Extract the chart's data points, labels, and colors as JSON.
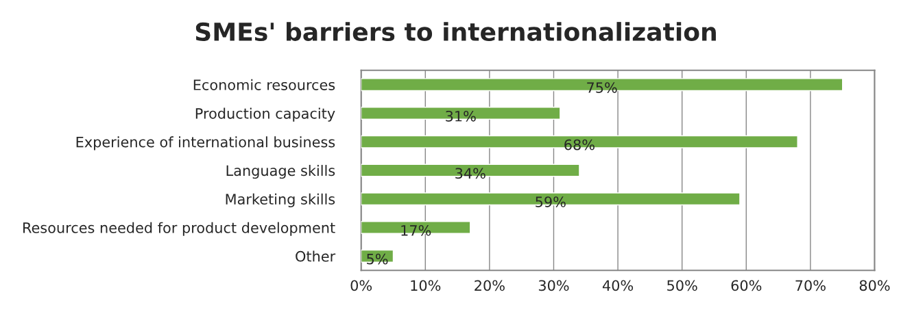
{
  "chart_data": {
    "type": "bar",
    "orientation": "horizontal",
    "title": "SMEs' barriers to internationalization",
    "categories": [
      "Economic resources",
      "Production capacity",
      "Experience of international business",
      "Language skills",
      "Marketing skills",
      "Resources needed for product development",
      "Other"
    ],
    "values": [
      75,
      31,
      68,
      34,
      59,
      17,
      5
    ],
    "value_labels": [
      "75%",
      "31%",
      "68%",
      "34%",
      "59%",
      "17%",
      "5%"
    ],
    "color": "#70ad47",
    "xlim": [
      0,
      80
    ],
    "xticks": [
      {
        "value": 0,
        "label": "0%"
      },
      {
        "value": 10,
        "label": "10%"
      },
      {
        "value": 20,
        "label": "20%"
      },
      {
        "value": 30,
        "label": "30%"
      },
      {
        "value": 40,
        "label": "40%"
      },
      {
        "value": 50,
        "label": "50%"
      },
      {
        "value": 60,
        "label": "60%"
      },
      {
        "value": 70,
        "label": "70%"
      },
      {
        "value": 80,
        "label": "80%"
      }
    ],
    "grid": "x",
    "legend": false
  }
}
